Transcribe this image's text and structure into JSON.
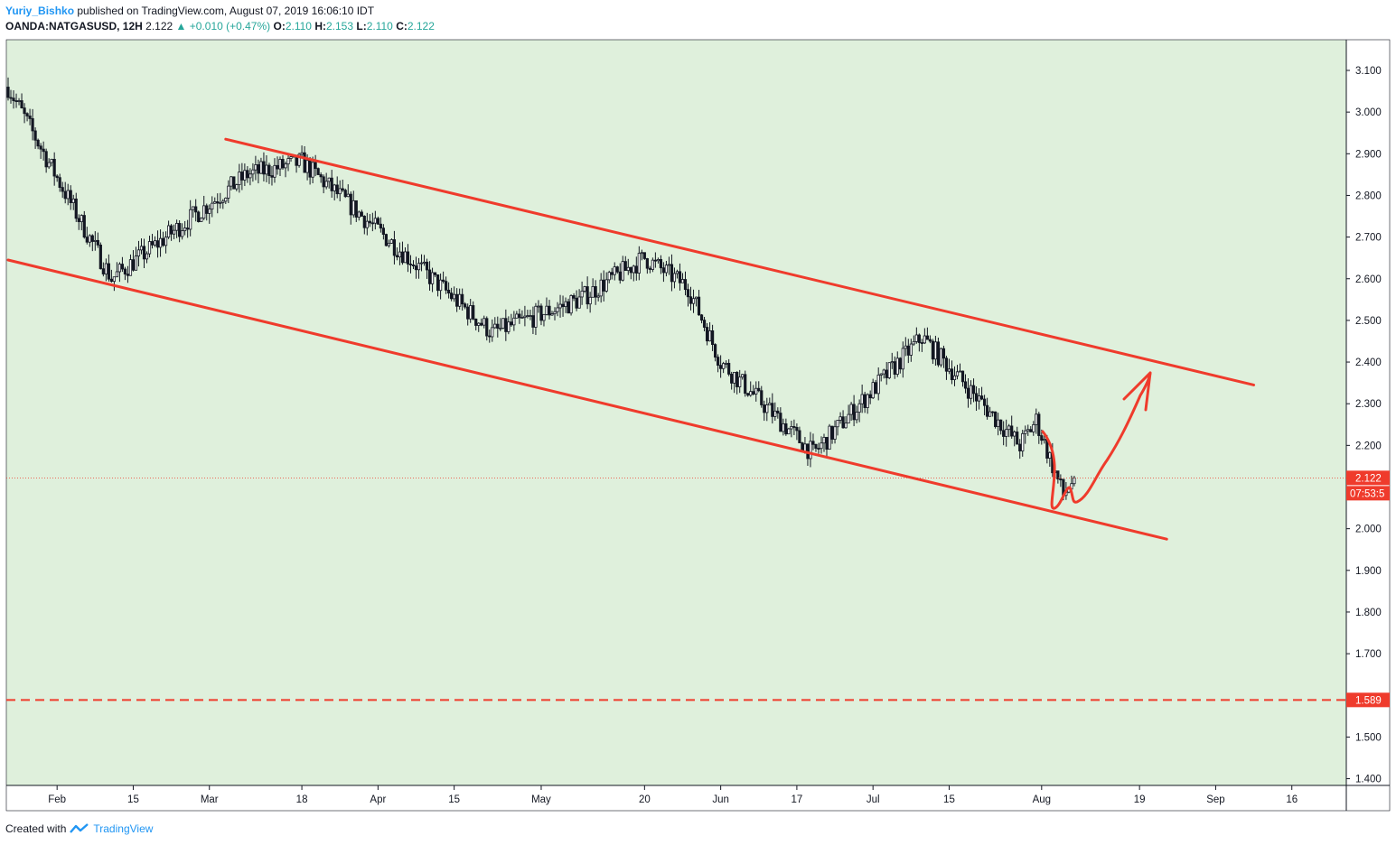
{
  "header": {
    "publisher": "Yuriy_Bishko",
    "published_text": "published on TradingView.com, August 07, 2019 16:06:10 IDT"
  },
  "symbol_line": {
    "symbol": "OANDA:NATGASUSD, 12H",
    "last": "2.122",
    "change": "+0.010 (+0.47%)",
    "o_label": "O:",
    "o_value": "2.110",
    "h_label": "H:",
    "h_value": "2.153",
    "l_label": "L:",
    "l_value": "2.110",
    "c_label": "C:",
    "c_value": "2.122"
  },
  "footer": {
    "created_with": "Created with",
    "brand": "TradingView"
  },
  "colors": {
    "background": "#dff0dc",
    "trendline": "#ef3b2c",
    "candle": "#131722",
    "price_label": "#ef3b2c",
    "up_arrow": "#26a69a"
  },
  "chart_data": {
    "type": "candlestick",
    "ylim": [
      1.36,
      3.18
    ],
    "y_ticks": [
      "3.100",
      "3.000",
      "2.900",
      "2.800",
      "2.700",
      "2.600",
      "2.500",
      "2.400",
      "2.300",
      "2.200",
      "2.000",
      "1.900",
      "1.800",
      "1.700",
      "1.500",
      "1.400"
    ],
    "x_ticks": [
      "Feb",
      "15",
      "Mar",
      "18",
      "Apr",
      "15",
      "May",
      "20",
      "Jun",
      "17",
      "Jul",
      "15",
      "Aug",
      "19",
      "Sep",
      "16"
    ],
    "current_price_label": "2.122",
    "countdown_label": "07:53:5",
    "horizontal_level": {
      "value": 1.589,
      "label": "1.589",
      "style": "dashed"
    },
    "channel": {
      "upper": [
        {
          "date": "2019-03-04",
          "value": 2.935
        },
        {
          "date": "2019-09-09",
          "value": 2.345
        }
      ],
      "lower": [
        {
          "date": "2019-01-23",
          "value": 2.645
        },
        {
          "date": "2019-08-24",
          "value": 1.975
        }
      ]
    },
    "key_closes": [
      {
        "date": "2019-01-23",
        "value": 3.06
      },
      {
        "date": "2019-02-11",
        "value": 2.6
      },
      {
        "date": "2019-03-08",
        "value": 2.85
      },
      {
        "date": "2019-03-18",
        "value": 2.88
      },
      {
        "date": "2019-04-22",
        "value": 2.47
      },
      {
        "date": "2019-05-08",
        "value": 2.55
      },
      {
        "date": "2019-05-20",
        "value": 2.65
      },
      {
        "date": "2019-05-28",
        "value": 2.58
      },
      {
        "date": "2019-06-03",
        "value": 2.4
      },
      {
        "date": "2019-06-20",
        "value": 2.18
      },
      {
        "date": "2019-07-10",
        "value": 2.46
      },
      {
        "date": "2019-07-28",
        "value": 2.2
      },
      {
        "date": "2019-07-31",
        "value": 2.26
      },
      {
        "date": "2019-08-05",
        "value": 2.08
      },
      {
        "date": "2019-08-07",
        "value": 2.122
      }
    ]
  }
}
